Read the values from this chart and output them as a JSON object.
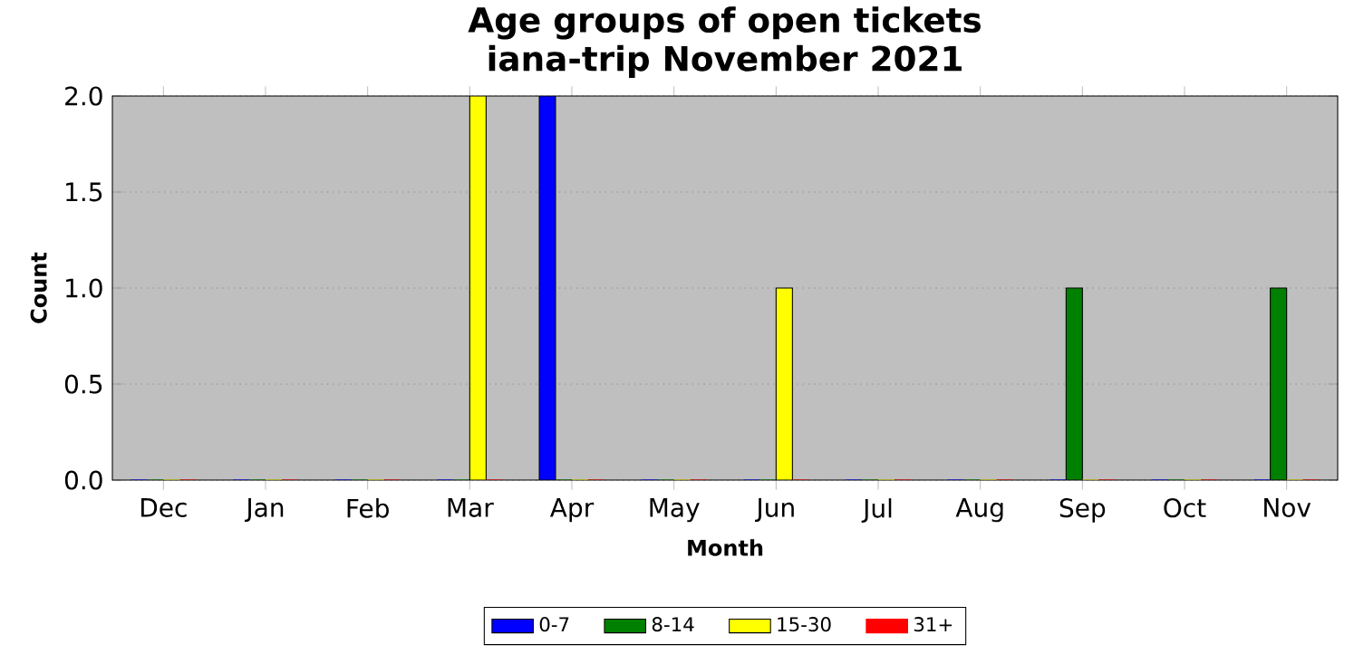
{
  "chart_data": {
    "type": "bar",
    "title": "Age groups of open tickets",
    "subtitle": "iana-trip November 2021",
    "xlabel": "Month",
    "ylabel": "Count",
    "categories": [
      "Dec",
      "Jan",
      "Feb",
      "Mar",
      "Apr",
      "May",
      "Jun",
      "Jul",
      "Aug",
      "Sep",
      "Oct",
      "Nov"
    ],
    "series": [
      {
        "name": "0-7",
        "color": "#0000ff",
        "values": [
          0,
          0,
          0,
          0,
          2,
          0,
          0,
          0,
          0,
          0,
          0,
          0
        ]
      },
      {
        "name": "8-14",
        "color": "#008000",
        "values": [
          0,
          0,
          0,
          0,
          0,
          0,
          0,
          0,
          0,
          1,
          0,
          1
        ]
      },
      {
        "name": "15-30",
        "color": "#ffff00",
        "values": [
          0,
          0,
          0,
          2,
          0,
          0,
          1,
          0,
          0,
          0,
          0,
          0
        ]
      },
      {
        "name": "31+",
        "color": "#ff0000",
        "values": [
          0,
          0,
          0,
          0,
          0,
          0,
          0,
          0,
          0,
          0,
          0,
          0
        ]
      }
    ],
    "ylim": [
      0,
      2
    ],
    "yticks": [
      {
        "value": 0,
        "label": "0.0"
      },
      {
        "value": 0.5,
        "label": "0.5"
      },
      {
        "value": 1,
        "label": "1.0"
      },
      {
        "value": 1.5,
        "label": "1.5"
      },
      {
        "value": 2,
        "label": "2.0"
      }
    ],
    "grid": "y",
    "legend": "bottom"
  }
}
